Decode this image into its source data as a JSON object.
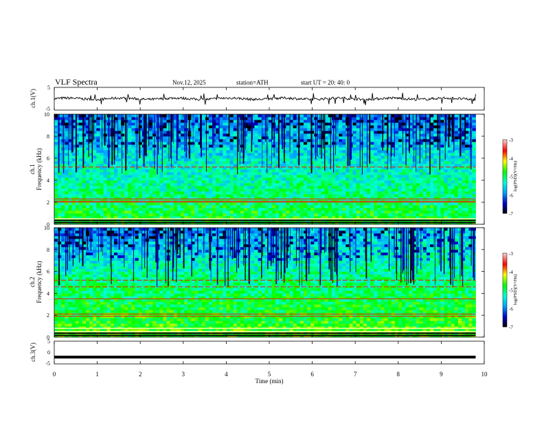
{
  "header": {
    "title": "VLF  Spectra",
    "date": "Nov.12, 2025",
    "station": "station=ATH",
    "start": "start  UT  =   20: 40: 0"
  },
  "chart_data": [
    {
      "type": "line",
      "name": "ch1-waveform",
      "ylabel": "ch.1(V)",
      "ylim": [
        -5,
        5
      ],
      "ticks": [
        "5",
        "-5"
      ],
      "x_range_min": [
        0,
        9.8
      ],
      "baseline_v": 0,
      "line_color": "#000000"
    },
    {
      "type": "heatmap",
      "name": "ch1-spectrogram",
      "ylabel_line1": "ch.1",
      "ylabel_line2": "Frequency  (kHz)",
      "ylim": [
        0,
        10
      ],
      "yticks": [
        "0",
        "2",
        "4",
        "6",
        "8",
        "10"
      ],
      "x_range_min": [
        0,
        9.8
      ],
      "bands_khz": [
        5.2,
        2.3,
        2.1,
        2.0,
        0.5
      ],
      "colorbar": {
        "label": "log(PSD)(V²/Hz)",
        "range": [
          -7,
          -3
        ],
        "ticks": [
          "-3",
          "-4",
          "-5",
          "-6",
          "-7"
        ],
        "colors": [
          "#000000",
          "#0000c8",
          "#00a0ff",
          "#00ffd0",
          "#00ff00",
          "#ffff00",
          "#ff0000",
          "#ffc8c8"
        ]
      }
    },
    {
      "type": "heatmap",
      "name": "ch2-spectrogram",
      "ylabel_line1": "ch.2",
      "ylabel_line2": "Frequency  (kHz)",
      "ylim": [
        0,
        10
      ],
      "yticks": [
        "0",
        "2",
        "4",
        "6",
        "8",
        "10"
      ],
      "x_range_min": [
        0,
        9.8
      ],
      "bands_khz": [
        5.2,
        4.6,
        3.5,
        2.1,
        1.9,
        0.8,
        0.5
      ],
      "colorbar": {
        "label": "log(PSD)(V²/Hz)",
        "range": [
          -7,
          -3
        ],
        "ticks": [
          "-3",
          "-4",
          "-5",
          "-6",
          "-7"
        ],
        "colors": [
          "#000000",
          "#0000c8",
          "#00a0ff",
          "#00ffd0",
          "#00ff00",
          "#ffff00",
          "#ff0000",
          "#ffc8c8"
        ]
      }
    },
    {
      "type": "line",
      "name": "ch3-waveform",
      "ylabel": "ch.3(V)",
      "ylim": [
        -5,
        5
      ],
      "ticks": [
        "5",
        "0",
        "-5"
      ],
      "x_range_min": [
        0,
        9.8
      ],
      "constant_v": -2.0,
      "line_color": "#000000"
    }
  ],
  "xaxis": {
    "label": "Time  (min)",
    "range": [
      0,
      10
    ],
    "ticks": [
      "0",
      "1",
      "2",
      "3",
      "4",
      "5",
      "6",
      "7",
      "8",
      "9",
      "10"
    ]
  }
}
